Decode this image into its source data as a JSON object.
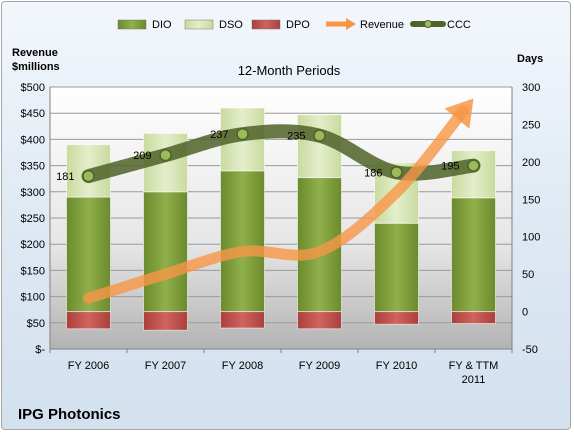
{
  "chart_data": {
    "type": "bar",
    "subtitle": "12-Month Periods",
    "company": "IPG Photonics",
    "y_left_title": [
      "Revenue",
      "$millions"
    ],
    "y_right_title": "Days",
    "categories": [
      [
        "FY 2006"
      ],
      [
        "FY 2007"
      ],
      [
        "FY 2008"
      ],
      [
        "FY 2009"
      ],
      [
        "FY 2010"
      ],
      [
        "FY & TTM",
        "2011"
      ]
    ],
    "y_left": {
      "min": 0,
      "max": 500,
      "step": 50,
      "tick_labels": [
        "$-",
        "$50",
        "$100",
        "$150",
        "$200",
        "$250",
        "$300",
        "$350",
        "$400",
        "$450",
        "$500"
      ]
    },
    "y_right": {
      "min": -50,
      "max": 300,
      "step": 50
    },
    "legend_position": "top",
    "grid": true,
    "series": [
      {
        "name": "DIO",
        "kind": "stacked-bar",
        "axis": "right",
        "color": "#76933c",
        "values": [
          153,
          160,
          188,
          179,
          118,
          152
        ]
      },
      {
        "name": "DSO",
        "kind": "stacked-bar",
        "axis": "right",
        "color": "#d7e4bc",
        "values": [
          70,
          78,
          84,
          84,
          81,
          63
        ]
      },
      {
        "name": "DPO",
        "kind": "stacked-bar",
        "axis": "right",
        "color": "#c0504d",
        "values": [
          -23,
          -25,
          -22,
          -23,
          -17,
          -16
        ]
      },
      {
        "name": "Revenue",
        "kind": "line",
        "axis": "left",
        "color": "#f79646",
        "values": [
          97,
          143,
          186,
          186,
          299,
          478
        ]
      },
      {
        "name": "CCC",
        "kind": "line",
        "axis": "right",
        "color": "#4f6228",
        "values": [
          181,
          209,
          237,
          235,
          186,
          195
        ]
      }
    ]
  }
}
